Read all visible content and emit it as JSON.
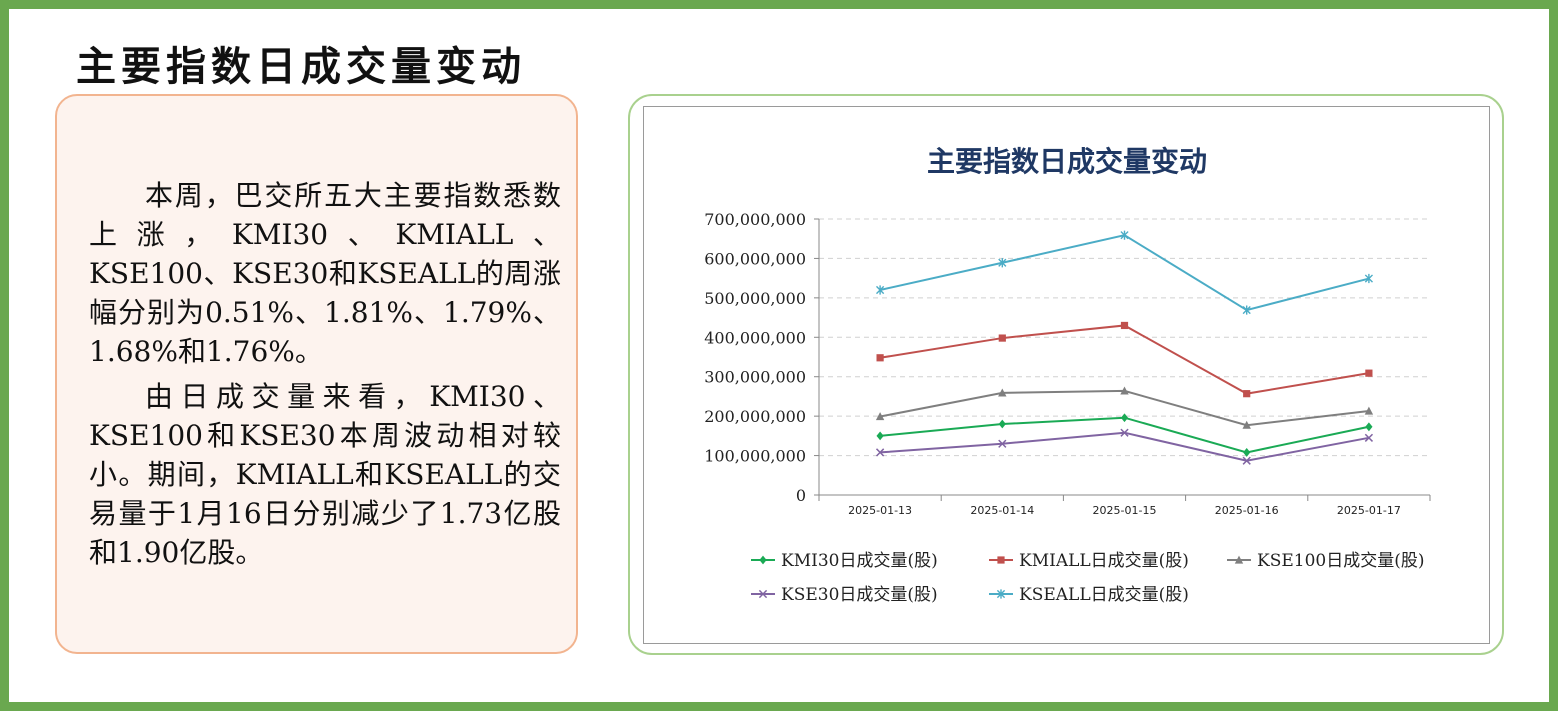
{
  "page": {
    "title": "主要指数日成交量变动",
    "paragraphs": [
      "本周，巴交所五大主要指数悉数上涨，KMI30、KMIALL、KSE100、KSE30和KSEALL的周涨幅分别为0.51%、1.81%、1.79%、1.68%和1.76%。",
      "由日成交量来看，KMI30、KSE100和KSE30本周波动相对较小。期间，KMIALL和KSEALL的交易量于1月16日分别减少了1.73亿股和1.90亿股。"
    ]
  },
  "chart_data": {
    "type": "line",
    "title": "主要指数日成交量变动",
    "categories": [
      "2025-01-13",
      "2025-01-14",
      "2025-01-15",
      "2025-01-16",
      "2025-01-17"
    ],
    "ylim": [
      0,
      700000000
    ],
    "yticks": [
      "0",
      "100,000,000",
      "200,000,000",
      "300,000,000",
      "400,000,000",
      "500,000,000",
      "600,000,000",
      "700,000,000"
    ],
    "ytick_values": [
      0,
      100000000,
      200000000,
      300000000,
      400000000,
      500000000,
      600000000,
      700000000
    ],
    "grid": "horizontal dashed",
    "legend_position": "bottom",
    "series": [
      {
        "name": "KMI30日成交量(股)",
        "color": "#1aaa55",
        "marker": "diamond",
        "values": [
          150000000,
          180000000,
          196000000,
          108000000,
          173000000
        ]
      },
      {
        "name": "KMIALL日成交量(股)",
        "color": "#c0504d",
        "marker": "square",
        "values": [
          348000000,
          398000000,
          430000000,
          257000000,
          309000000
        ]
      },
      {
        "name": "KSE100日成交量(股)",
        "color": "#7f7f7f",
        "marker": "triangle",
        "values": [
          199000000,
          259000000,
          264000000,
          177000000,
          213000000
        ]
      },
      {
        "name": "KSE30日成交量(股)",
        "color": "#8064a2",
        "marker": "x",
        "values": [
          108000000,
          130000000,
          158000000,
          87000000,
          145000000
        ]
      },
      {
        "name": "KSEALL日成交量(股)",
        "color": "#4bacc6",
        "marker": "asterisk",
        "values": [
          520000000,
          589000000,
          659000000,
          469000000,
          549000000
        ]
      }
    ]
  }
}
